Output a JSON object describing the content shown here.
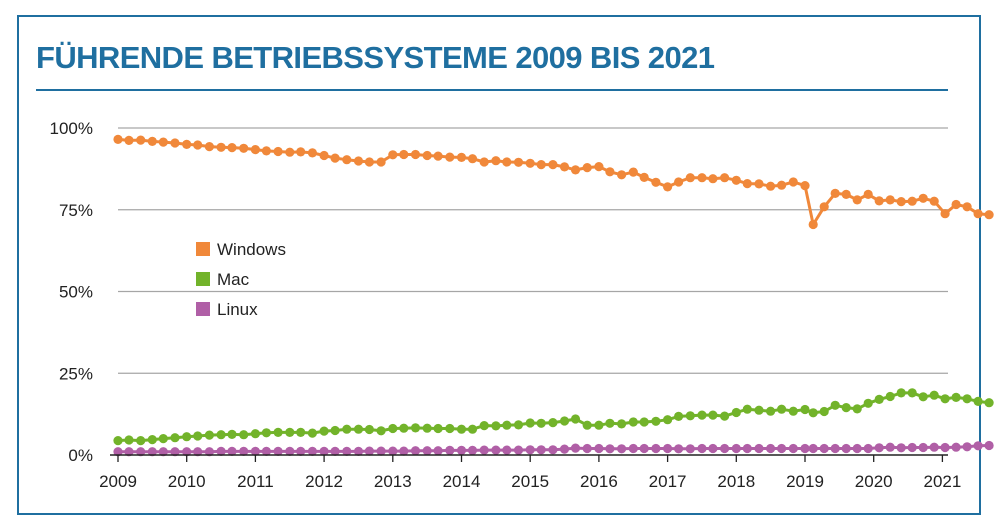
{
  "title": "FÜHRENDE BETRIEBSSYSTEME 2009 BIS 2021",
  "chart_data": {
    "type": "line",
    "title": "FÜHRENDE BETRIEBSSYSTEME 2009 BIS 2021",
    "xlabel": "",
    "ylabel": "",
    "x_ticks": [
      "2009",
      "2010",
      "2011",
      "2012",
      "2013",
      "2014",
      "2015",
      "2016",
      "2017",
      "2018",
      "2019",
      "2020",
      "2021"
    ],
    "y_ticks": [
      "0%",
      "25%",
      "50%",
      "75%",
      "100%"
    ],
    "xlim": [
      2009.0,
      2021.7
    ],
    "ylim": [
      0,
      100
    ],
    "grid": "horizontal",
    "legend_position": "left-center",
    "series": [
      {
        "name": "Windows",
        "color": "#f0883a",
        "points": [
          [
            2009.0,
            96.5
          ],
          [
            2009.16,
            96.2
          ],
          [
            2009.33,
            96.3
          ],
          [
            2009.5,
            95.9
          ],
          [
            2009.66,
            95.7
          ],
          [
            2009.83,
            95.4
          ],
          [
            2010.0,
            95.0
          ],
          [
            2010.16,
            94.8
          ],
          [
            2010.33,
            94.3
          ],
          [
            2010.5,
            94.1
          ],
          [
            2010.66,
            94.0
          ],
          [
            2010.83,
            93.8
          ],
          [
            2011.0,
            93.4
          ],
          [
            2011.16,
            93.0
          ],
          [
            2011.33,
            92.8
          ],
          [
            2011.5,
            92.6
          ],
          [
            2011.66,
            92.7
          ],
          [
            2011.83,
            92.4
          ],
          [
            2012.0,
            91.6
          ],
          [
            2012.16,
            90.8
          ],
          [
            2012.33,
            90.3
          ],
          [
            2012.5,
            89.9
          ],
          [
            2012.66,
            89.6
          ],
          [
            2012.83,
            89.6
          ],
          [
            2013.0,
            91.8
          ],
          [
            2013.16,
            91.9
          ],
          [
            2013.33,
            91.9
          ],
          [
            2013.5,
            91.6
          ],
          [
            2013.66,
            91.4
          ],
          [
            2013.83,
            91.1
          ],
          [
            2014.0,
            91.0
          ],
          [
            2014.16,
            90.6
          ],
          [
            2014.33,
            89.6
          ],
          [
            2014.5,
            90.0
          ],
          [
            2014.66,
            89.6
          ],
          [
            2014.83,
            89.5
          ],
          [
            2015.0,
            89.2
          ],
          [
            2015.16,
            88.8
          ],
          [
            2015.33,
            88.8
          ],
          [
            2015.5,
            88.1
          ],
          [
            2015.66,
            87.2
          ],
          [
            2015.83,
            87.9
          ],
          [
            2016.0,
            88.2
          ],
          [
            2016.16,
            86.6
          ],
          [
            2016.33,
            85.7
          ],
          [
            2016.5,
            86.5
          ],
          [
            2016.66,
            84.9
          ],
          [
            2016.83,
            83.4
          ],
          [
            2017.0,
            82.0
          ],
          [
            2017.16,
            83.5
          ],
          [
            2017.33,
            84.8
          ],
          [
            2017.5,
            84.8
          ],
          [
            2017.66,
            84.5
          ],
          [
            2017.83,
            84.8
          ],
          [
            2018.0,
            84.0
          ],
          [
            2018.16,
            83.0
          ],
          [
            2018.33,
            82.9
          ],
          [
            2018.5,
            82.2
          ],
          [
            2018.66,
            82.5
          ],
          [
            2018.83,
            83.5
          ],
          [
            2019.0,
            82.4
          ],
          [
            2019.12,
            70.5
          ],
          [
            2019.28,
            75.9
          ],
          [
            2019.44,
            80.0
          ],
          [
            2019.6,
            79.7
          ],
          [
            2019.76,
            78.0
          ],
          [
            2019.92,
            79.7
          ],
          [
            2020.08,
            77.7
          ],
          [
            2020.24,
            78.0
          ],
          [
            2020.4,
            77.5
          ],
          [
            2020.56,
            77.6
          ],
          [
            2020.72,
            78.5
          ],
          [
            2020.88,
            77.6
          ],
          [
            2021.04,
            73.8
          ],
          [
            2021.2,
            76.6
          ],
          [
            2021.36,
            75.9
          ],
          [
            2021.52,
            73.8
          ],
          [
            2021.68,
            73.5
          ]
        ]
      },
      {
        "name": "Mac",
        "color": "#72b32a",
        "points": [
          [
            2009.0,
            4.4
          ],
          [
            2009.16,
            4.6
          ],
          [
            2009.33,
            4.4
          ],
          [
            2009.5,
            4.7
          ],
          [
            2009.66,
            5.0
          ],
          [
            2009.83,
            5.3
          ],
          [
            2010.0,
            5.6
          ],
          [
            2010.16,
            5.8
          ],
          [
            2010.33,
            6.1
          ],
          [
            2010.5,
            6.2
          ],
          [
            2010.66,
            6.3
          ],
          [
            2010.83,
            6.2
          ],
          [
            2011.0,
            6.5
          ],
          [
            2011.16,
            6.8
          ],
          [
            2011.33,
            6.9
          ],
          [
            2011.5,
            6.9
          ],
          [
            2011.66,
            6.9
          ],
          [
            2011.83,
            6.7
          ],
          [
            2012.0,
            7.3
          ],
          [
            2012.16,
            7.5
          ],
          [
            2012.33,
            7.9
          ],
          [
            2012.5,
            7.9
          ],
          [
            2012.66,
            7.8
          ],
          [
            2012.83,
            7.4
          ],
          [
            2013.0,
            8.1
          ],
          [
            2013.16,
            8.2
          ],
          [
            2013.33,
            8.3
          ],
          [
            2013.5,
            8.2
          ],
          [
            2013.66,
            8.1
          ],
          [
            2013.83,
            8.1
          ],
          [
            2014.0,
            7.9
          ],
          [
            2014.16,
            7.9
          ],
          [
            2014.33,
            9.0
          ],
          [
            2014.5,
            8.9
          ],
          [
            2014.66,
            9.1
          ],
          [
            2014.83,
            9.2
          ],
          [
            2015.0,
            9.8
          ],
          [
            2015.16,
            9.7
          ],
          [
            2015.33,
            9.9
          ],
          [
            2015.5,
            10.4
          ],
          [
            2015.66,
            11.0
          ],
          [
            2015.83,
            9.1
          ],
          [
            2016.0,
            9.1
          ],
          [
            2016.16,
            9.7
          ],
          [
            2016.33,
            9.5
          ],
          [
            2016.5,
            10.1
          ],
          [
            2016.66,
            10.1
          ],
          [
            2016.83,
            10.3
          ],
          [
            2017.0,
            10.8
          ],
          [
            2017.16,
            11.8
          ],
          [
            2017.33,
            12.0
          ],
          [
            2017.5,
            12.2
          ],
          [
            2017.66,
            12.2
          ],
          [
            2017.83,
            11.9
          ],
          [
            2018.0,
            13.0
          ],
          [
            2018.16,
            14.0
          ],
          [
            2018.33,
            13.7
          ],
          [
            2018.5,
            13.4
          ],
          [
            2018.66,
            14.0
          ],
          [
            2018.83,
            13.4
          ],
          [
            2019.0,
            13.9
          ],
          [
            2019.12,
            12.9
          ],
          [
            2019.28,
            13.3
          ],
          [
            2019.44,
            15.2
          ],
          [
            2019.6,
            14.5
          ],
          [
            2019.76,
            14.1
          ],
          [
            2019.92,
            15.8
          ],
          [
            2020.08,
            17.0
          ],
          [
            2020.24,
            17.9
          ],
          [
            2020.4,
            19.0
          ],
          [
            2020.56,
            19.0
          ],
          [
            2020.72,
            17.8
          ],
          [
            2020.88,
            18.3
          ],
          [
            2021.04,
            17.2
          ],
          [
            2021.2,
            17.6
          ],
          [
            2021.36,
            17.2
          ],
          [
            2021.52,
            16.4
          ],
          [
            2021.68,
            16.0
          ]
        ]
      },
      {
        "name": "Linux",
        "color": "#b05fa6",
        "points": [
          [
            2009.0,
            1.0
          ],
          [
            2009.16,
            1.0
          ],
          [
            2009.33,
            1.0
          ],
          [
            2009.5,
            1.0
          ],
          [
            2009.66,
            1.0
          ],
          [
            2009.83,
            1.0
          ],
          [
            2010.0,
            1.0
          ],
          [
            2010.16,
            1.0
          ],
          [
            2010.33,
            1.0
          ],
          [
            2010.5,
            1.1
          ],
          [
            2010.66,
            1.1
          ],
          [
            2010.83,
            1.1
          ],
          [
            2011.0,
            1.1
          ],
          [
            2011.16,
            1.1
          ],
          [
            2011.33,
            1.1
          ],
          [
            2011.5,
            1.1
          ],
          [
            2011.66,
            1.1
          ],
          [
            2011.83,
            1.1
          ],
          [
            2012.0,
            1.1
          ],
          [
            2012.16,
            1.1
          ],
          [
            2012.33,
            1.1
          ],
          [
            2012.5,
            1.1
          ],
          [
            2012.66,
            1.2
          ],
          [
            2012.83,
            1.2
          ],
          [
            2013.0,
            1.2
          ],
          [
            2013.16,
            1.2
          ],
          [
            2013.33,
            1.3
          ],
          [
            2013.5,
            1.3
          ],
          [
            2013.66,
            1.3
          ],
          [
            2013.83,
            1.4
          ],
          [
            2014.0,
            1.4
          ],
          [
            2014.16,
            1.4
          ],
          [
            2014.33,
            1.5
          ],
          [
            2014.5,
            1.5
          ],
          [
            2014.66,
            1.5
          ],
          [
            2014.83,
            1.5
          ],
          [
            2015.0,
            1.6
          ],
          [
            2015.16,
            1.6
          ],
          [
            2015.33,
            1.6
          ],
          [
            2015.5,
            1.8
          ],
          [
            2015.66,
            2.1
          ],
          [
            2015.83,
            2.0
          ],
          [
            2016.0,
            2.0
          ],
          [
            2016.16,
            1.9
          ],
          [
            2016.33,
            1.9
          ],
          [
            2016.5,
            2.0
          ],
          [
            2016.66,
            2.0
          ],
          [
            2016.83,
            2.0
          ],
          [
            2017.0,
            2.0
          ],
          [
            2017.16,
            1.9
          ],
          [
            2017.33,
            1.9
          ],
          [
            2017.5,
            2.0
          ],
          [
            2017.66,
            2.0
          ],
          [
            2017.83,
            2.0
          ],
          [
            2018.0,
            2.0
          ],
          [
            2018.16,
            2.0
          ],
          [
            2018.33,
            2.0
          ],
          [
            2018.5,
            2.0
          ],
          [
            2018.66,
            2.0
          ],
          [
            2018.83,
            2.0
          ],
          [
            2019.0,
            2.0
          ],
          [
            2019.12,
            2.0
          ],
          [
            2019.28,
            2.0
          ],
          [
            2019.44,
            2.0
          ],
          [
            2019.6,
            2.0
          ],
          [
            2019.76,
            2.0
          ],
          [
            2019.92,
            2.0
          ],
          [
            2020.08,
            2.2
          ],
          [
            2020.24,
            2.4
          ],
          [
            2020.4,
            2.2
          ],
          [
            2020.56,
            2.3
          ],
          [
            2020.72,
            2.3
          ],
          [
            2020.88,
            2.4
          ],
          [
            2021.04,
            2.3
          ],
          [
            2021.2,
            2.4
          ],
          [
            2021.36,
            2.5
          ],
          [
            2021.52,
            2.8
          ],
          [
            2021.68,
            2.9
          ]
        ]
      }
    ]
  }
}
